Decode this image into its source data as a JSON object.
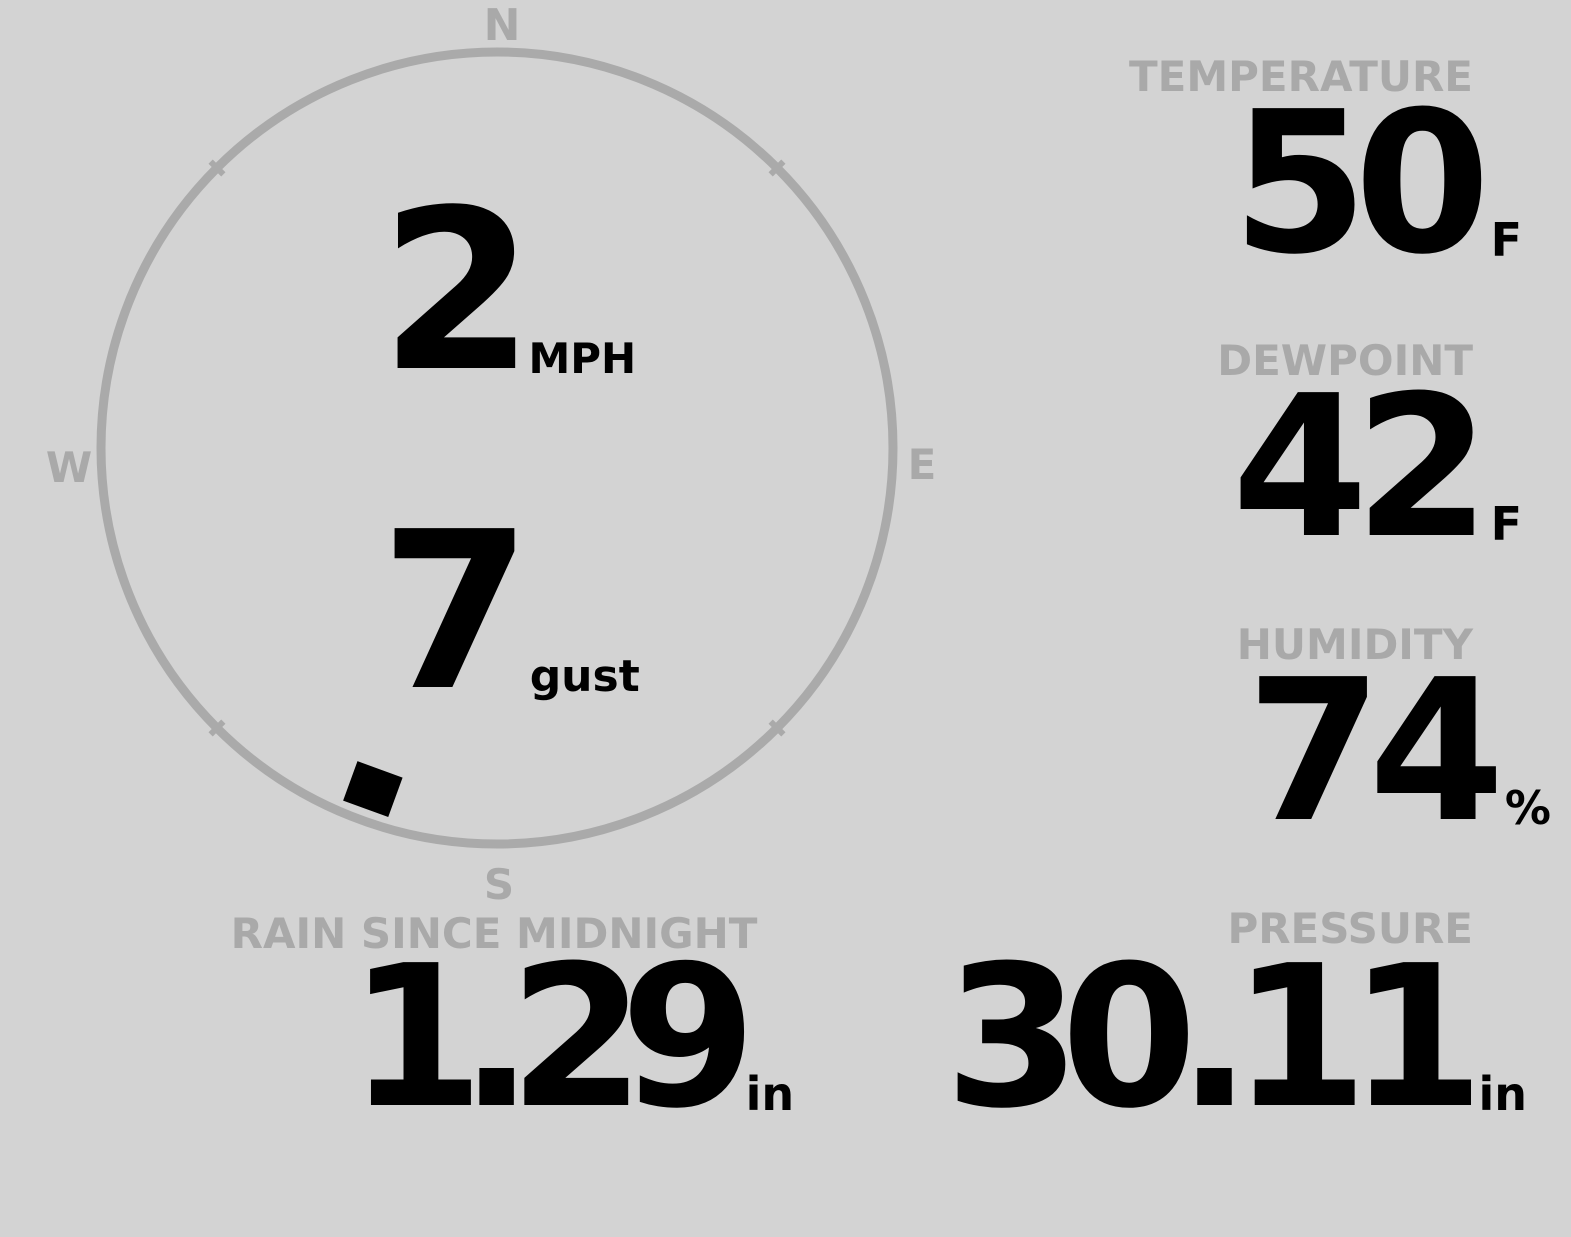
{
  "colors": {
    "background": "#d3d3d3",
    "label": "#a9a9a9",
    "value": "#000000",
    "dial": "#aaaaaa"
  },
  "wind": {
    "compass": {
      "north": "N",
      "east": "E",
      "south": "S",
      "west": "W"
    },
    "direction_degrees": 200,
    "speed": "2",
    "speed_unit": "MPH",
    "gust": "7",
    "gust_unit": "gust"
  },
  "temperature": {
    "label": "TEMPERATURE",
    "value": "50",
    "unit": "F"
  },
  "dewpoint": {
    "label": "DEWPOINT",
    "value": "42",
    "unit": "F"
  },
  "humidity": {
    "label": "HUMIDITY",
    "value": "74",
    "unit": "%"
  },
  "rain": {
    "label": "RAIN SINCE MIDNIGHT",
    "value": "1.29",
    "unit": "in"
  },
  "pressure": {
    "label": "PRESSURE",
    "value": "30.11",
    "unit": "in"
  }
}
